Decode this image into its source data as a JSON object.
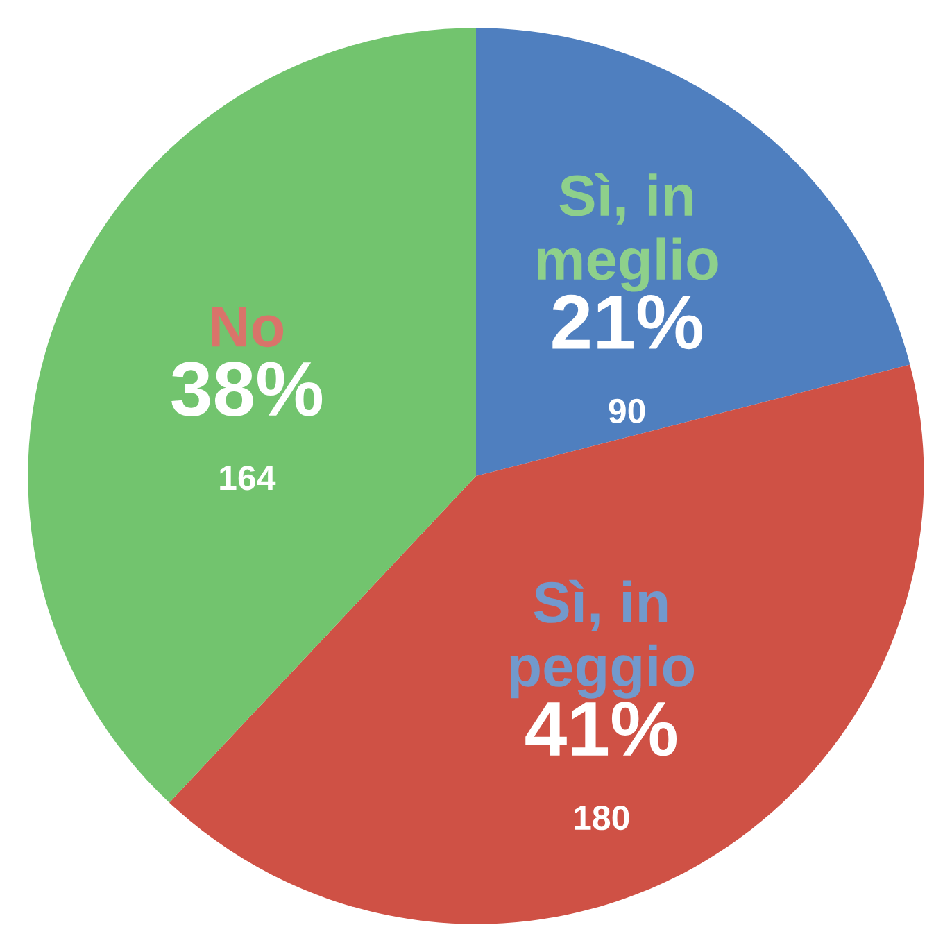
{
  "chart_data": {
    "type": "pie",
    "categories": [
      "Sì, in meglio",
      "Sì, in peggio",
      "No"
    ],
    "values": [
      21,
      41,
      38
    ],
    "value_labels": [
      "21%",
      "41%",
      "38%"
    ],
    "annotations": [
      "90",
      "180",
      "164"
    ],
    "colors": [
      "#4f7fbf",
      "#cf5145",
      "#72c46e"
    ]
  }
}
